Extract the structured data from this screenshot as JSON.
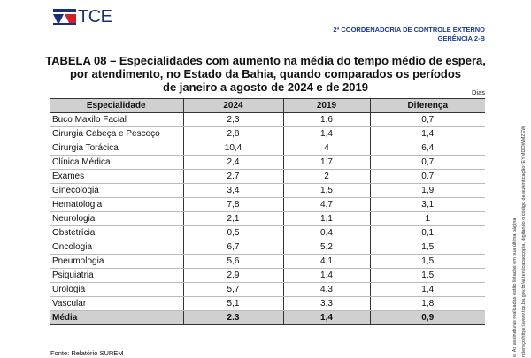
{
  "header": {
    "logo_text": "TCE",
    "org_line1": "2ª COORDENADORIA DE CONTROLE EXTERNO",
    "org_line2": "GERÊNCIA 2-B"
  },
  "title": {
    "line1": "TABELA 08 – Especialidades com aumento na média do tempo médio de espera,",
    "line2": "por atendimento, no Estado da Bahia, quando comparados os períodos",
    "line3": "de janeiro a agosto de 2024 e de 2019"
  },
  "unit": "Dias",
  "table": {
    "headers": [
      "Especialidade",
      "2024",
      "2019",
      "Diferença"
    ],
    "rows": [
      [
        "Buco Maxilo Facial",
        "2,3",
        "1,6",
        "0,7"
      ],
      [
        "Cirurgia Cabeça e Pescoço",
        "2,8",
        "1,4",
        "1,4"
      ],
      [
        "Cirurgia Torácica",
        "10,4",
        "4",
        "6,4"
      ],
      [
        "Clínica Médica",
        "2,4",
        "1,7",
        "0,7"
      ],
      [
        "Exames",
        "2,7",
        "2",
        "0,7"
      ],
      [
        "Ginecologia",
        "3,4",
        "1,5",
        "1,9"
      ],
      [
        "Hematologia",
        "7,8",
        "4,7",
        "3,1"
      ],
      [
        "Neurologia",
        "2,1",
        "1,1",
        "1"
      ],
      [
        "Obstetrícia",
        "0,5",
        "0,4",
        "0,1"
      ],
      [
        "Oncologia",
        "6,7",
        "5,2",
        "1,5"
      ],
      [
        "Pneumologia",
        "5,6",
        "4,1",
        "1,5"
      ],
      [
        "Psiquiatria",
        "2,9",
        "1,4",
        "1,5"
      ],
      [
        "Urologia",
        "5,7",
        "4,3",
        "1,4"
      ],
      [
        "Vascular",
        "5,1",
        "3,3",
        "1,8"
      ]
    ],
    "average": [
      "Média",
      "2.3",
      "1,4",
      "0,9"
    ]
  },
  "source": "Fonte: Relatório SUREM",
  "side_text": {
    "line1": "e. As assinaturas realizadas estão listadas em sua última página.",
    "line2": "ndereço https://www.tce.ba.gov.br/autenticacaocopia, digitando o código de autenticação: EYMDOWMZEW"
  },
  "colors": {
    "brand_blue": "#1a2f7a",
    "brand_red": "#d0202a",
    "header_gray": "#d0d0d0"
  }
}
